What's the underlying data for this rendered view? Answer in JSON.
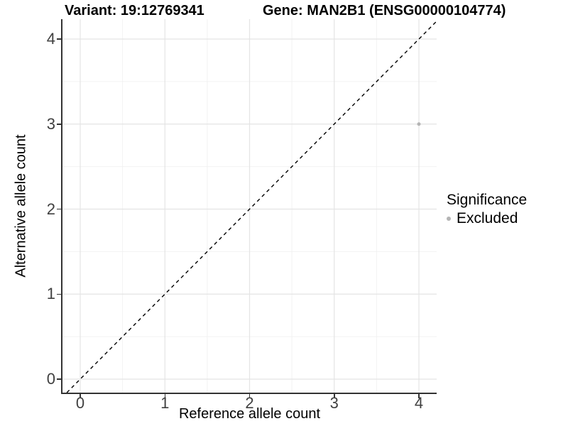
{
  "chart_data": {
    "type": "scatter",
    "titles": {
      "left": "Variant: 19:12769341",
      "right": "Gene: MAN2B1 (ENSG00000104774)"
    },
    "xlabel": "Reference allele count",
    "ylabel": "Alternative allele count",
    "xlim": [
      -0.21,
      4.21
    ],
    "ylim": [
      -0.21,
      4.21
    ],
    "xticks": [
      0,
      1,
      2,
      3,
      4
    ],
    "yticks": [
      0,
      1,
      2,
      3,
      4
    ],
    "minor_xticks": [
      0.5,
      1.5,
      2.5,
      3.5
    ],
    "minor_yticks": [
      0.5,
      1.5,
      2.5,
      3.5
    ],
    "grid": "major-and-minor",
    "identity_line": {
      "equation": "y = x",
      "style": "dashed",
      "color": "#000000"
    },
    "series": [
      {
        "name": "Excluded",
        "color": "#b4b4b4",
        "points": [
          {
            "x": 4,
            "y": 3
          }
        ]
      }
    ],
    "legend": {
      "title": "Significance",
      "position": "right",
      "items": [
        {
          "label": "Excluded",
          "color": "#b4b4b4",
          "marker": "circle"
        }
      ]
    }
  },
  "colors": {
    "background": "#ffffff",
    "grid_major": "#e4e4e4",
    "grid_minor": "#f2f2f2",
    "axis_line": "#333333",
    "tick_label": "#404040",
    "point": "#b4b4b4"
  }
}
